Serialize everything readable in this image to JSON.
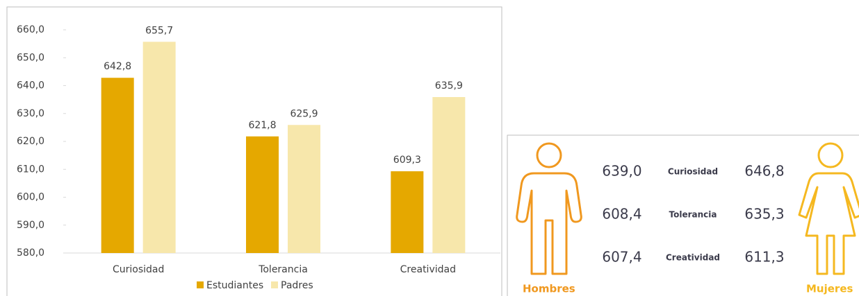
{
  "chart_data": {
    "type": "bar",
    "categories": [
      "Curiosidad",
      "Tolerancia",
      "Creatividad"
    ],
    "series": [
      {
        "name": "Estudiantes",
        "color": "#e5a800",
        "values": [
          642.8,
          621.8,
          609.3
        ],
        "value_labels": [
          "642,8",
          "621,8",
          "609,3"
        ]
      },
      {
        "name": "Padres",
        "color": "#f7e7ab",
        "values": [
          655.7,
          625.9,
          635.9
        ],
        "value_labels": [
          "655,7",
          "625,9",
          "635,9"
        ]
      }
    ],
    "ylim": [
      580,
      660
    ],
    "yticks": [
      {
        "value": 580,
        "label": "580,0"
      },
      {
        "value": 590,
        "label": "590,0"
      },
      {
        "value": 600,
        "label": "600,0"
      },
      {
        "value": 610,
        "label": "610,0"
      },
      {
        "value": 620,
        "label": "620,0"
      },
      {
        "value": 630,
        "label": "630,0"
      },
      {
        "value": 640,
        "label": "640,0"
      },
      {
        "value": 650,
        "label": "650,0"
      },
      {
        "value": 660,
        "label": "660,0"
      }
    ],
    "legend": "bottom"
  },
  "infographic": {
    "left_label": "Hombres",
    "right_label": "Mujeres",
    "rows": [
      {
        "label": "Curiosidad",
        "hombres": "639,0",
        "mujeres": "646,8"
      },
      {
        "label": "Tolerancia",
        "hombres": "608,4",
        "mujeres": "635,3"
      },
      {
        "label": "Creatividad",
        "hombres": "607,4",
        "mujeres": "611,3"
      }
    ]
  }
}
